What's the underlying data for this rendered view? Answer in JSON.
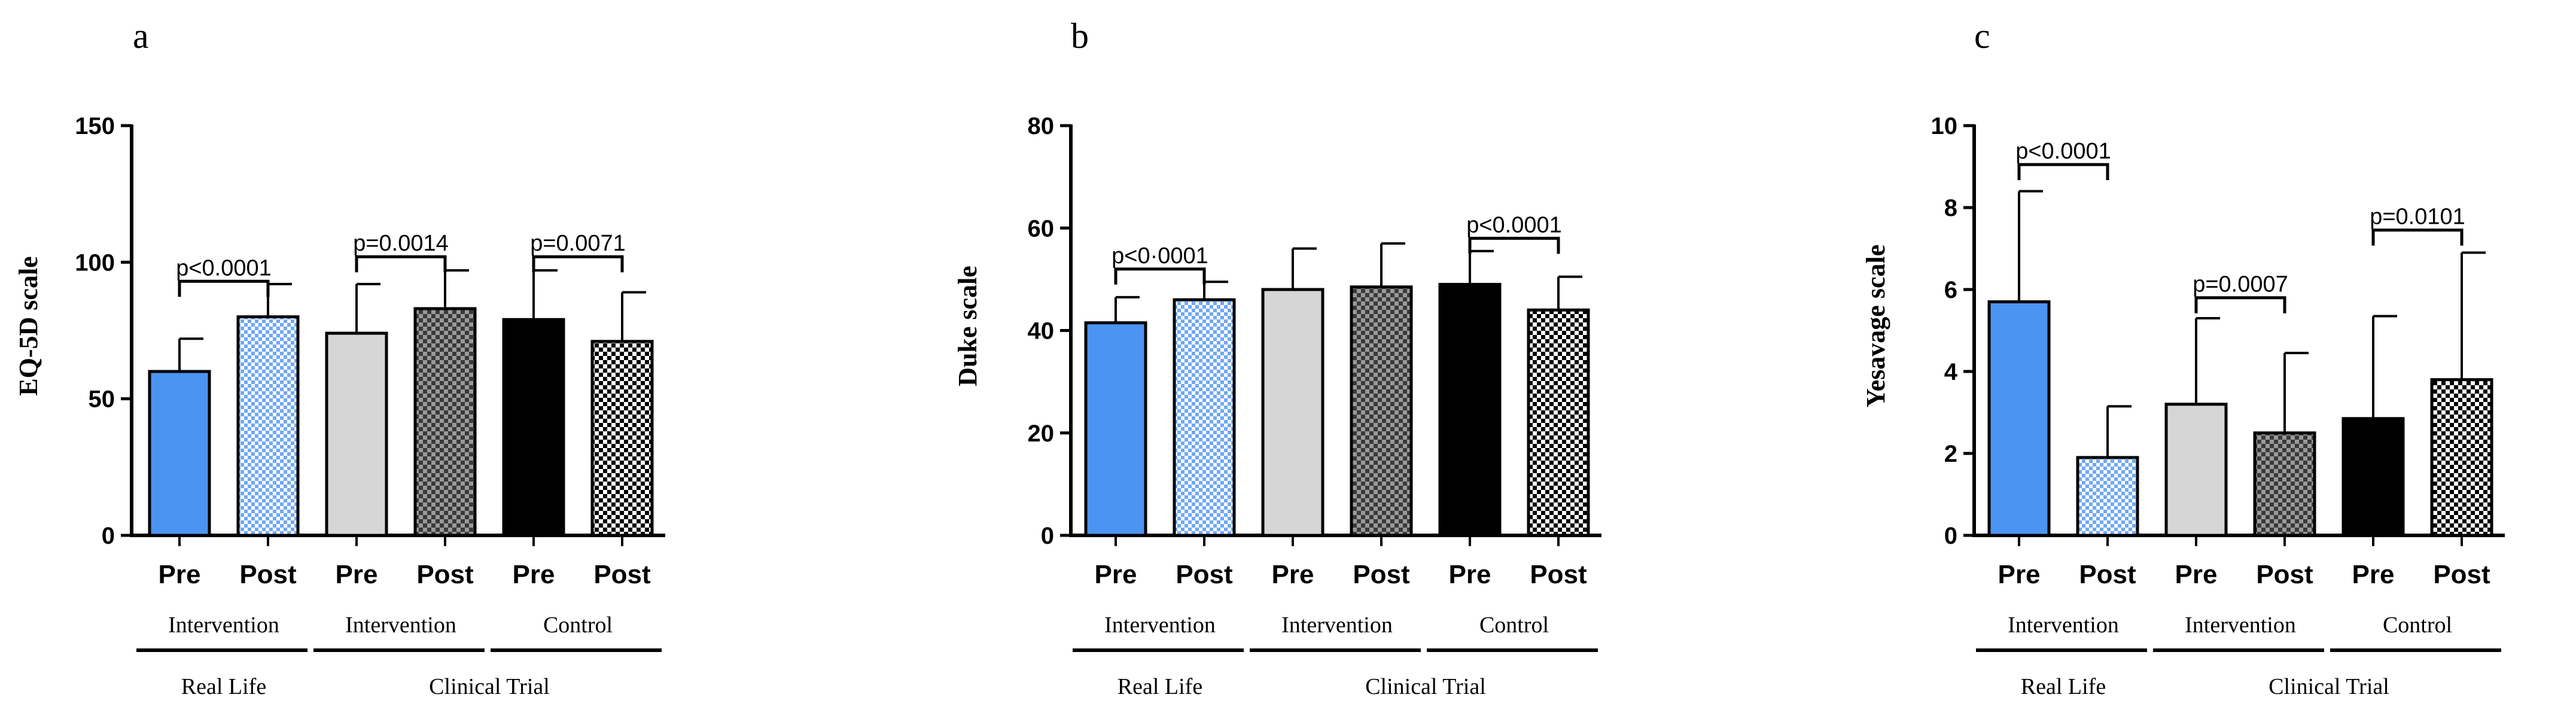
{
  "colors": {
    "blue": "#4b94f1",
    "light_blue": "#6fa8f5",
    "grey": "#d6d6d6",
    "dark_check": "#5a5a5a",
    "black": "#000000"
  },
  "chart_data": [
    {
      "type": "bar",
      "panel": "a",
      "ylabel": "EQ-5D scale",
      "ylim": [
        0,
        150
      ],
      "yticks": [
        0,
        50,
        100,
        150
      ],
      "categories": [
        "Pre",
        "Post",
        "Pre",
        "Post",
        "Pre",
        "Post"
      ],
      "values": [
        60,
        80,
        74,
        83,
        79,
        71
      ],
      "errors": [
        12,
        12,
        18,
        14,
        18,
        18
      ],
      "fills": [
        "blue",
        "light-check",
        "grey",
        "dark-check",
        "black",
        "white-check"
      ],
      "groups": [
        "Intervention",
        "Intervention",
        "Control"
      ],
      "supergroups": [
        "Real Life",
        "Clinical Trial"
      ],
      "comparisons": [
        {
          "from": 0,
          "to": 1,
          "label": "p<0.0001",
          "y": 93
        },
        {
          "from": 2,
          "to": 3,
          "label": "p=0.0014",
          "y": 102
        },
        {
          "from": 4,
          "to": 5,
          "label": "p=0.0071",
          "y": 102
        }
      ]
    },
    {
      "type": "bar",
      "panel": "b",
      "ylabel": "Duke scale",
      "ylim": [
        0,
        80
      ],
      "yticks": [
        0,
        20,
        40,
        60,
        80
      ],
      "categories": [
        "Pre",
        "Post",
        "Pre",
        "Post",
        "Pre",
        "Post"
      ],
      "values": [
        41.5,
        46,
        48,
        48.5,
        49,
        44
      ],
      "errors": [
        5,
        3.5,
        8,
        8.5,
        6.5,
        6.5
      ],
      "fills": [
        "blue",
        "light-check",
        "grey",
        "dark-check",
        "black",
        "white-check"
      ],
      "groups": [
        "Intervention",
        "Intervention",
        "Control"
      ],
      "supergroups": [
        "Real Life",
        "Clinical Trial"
      ],
      "comparisons": [
        {
          "from": 0,
          "to": 1,
          "label": "p<0·0001",
          "y": 52
        },
        {
          "from": 4,
          "to": 5,
          "label": "p<0.0001",
          "y": 58
        }
      ]
    },
    {
      "type": "bar",
      "panel": "c",
      "ylabel": "Yesavage scale",
      "ylim": [
        0,
        10
      ],
      "yticks": [
        0,
        2,
        4,
        6,
        8,
        10
      ],
      "categories": [
        "Pre",
        "Post",
        "Pre",
        "Post",
        "Pre",
        "Post"
      ],
      "values": [
        5.7,
        1.9,
        3.2,
        2.5,
        2.85,
        3.8
      ],
      "errors": [
        2.7,
        1.25,
        2.1,
        1.95,
        2.5,
        3.1
      ],
      "fills": [
        "blue",
        "light-check",
        "grey",
        "dark-check",
        "black",
        "white-check"
      ],
      "groups": [
        "Intervention",
        "Intervention",
        "Control"
      ],
      "supergroups": [
        "Real Life",
        "Clinical Trial"
      ],
      "comparisons": [
        {
          "from": 0,
          "to": 1,
          "label": "p<0.0001",
          "y": 9.05
        },
        {
          "from": 2,
          "to": 3,
          "label": "p=0.0007",
          "y": 5.8
        },
        {
          "from": 4,
          "to": 5,
          "label": "p=0.0101",
          "y": 7.45
        }
      ]
    }
  ]
}
